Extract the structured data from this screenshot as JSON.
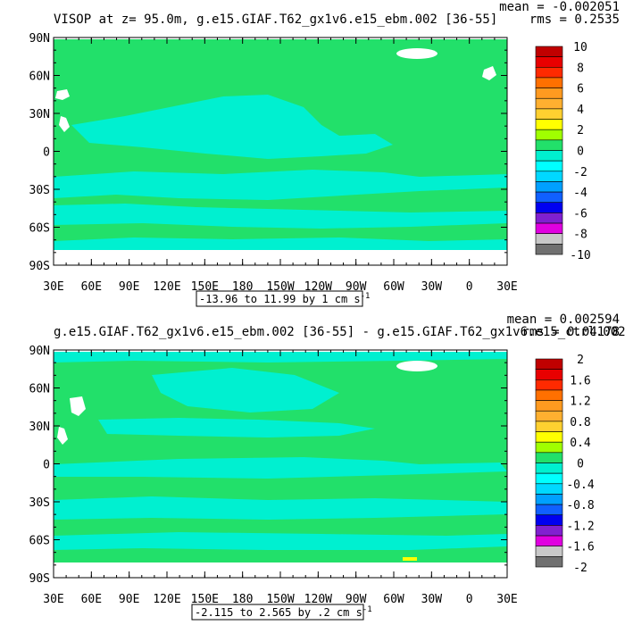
{
  "colors": {
    "ocean_green": "#22e06a",
    "ocean_cyan": "#00f0d0",
    "land_white": "#ffffff",
    "frame": "#000000"
  },
  "chart_data": [
    {
      "type": "heatmap",
      "title": "VISOP at z=  95.0m, g.e15.GIAF.T62_gx1v6.e15_ebm.002 [36-55]",
      "stats": [
        "mean = -0.002051",
        "rms = 0.2535"
      ],
      "range_label": "-13.96 to 11.99 by 1 cm s",
      "range_unit_sup": "-1",
      "x_ticks": [
        "30E",
        "60E",
        "90E",
        "120E",
        "150E",
        "180",
        "150W",
        "120W",
        "90W",
        "60W",
        "30W",
        "0",
        "30E"
      ],
      "y_ticks": [
        "90N",
        "60N",
        "30N",
        "0",
        "30S",
        "60S",
        "90S"
      ],
      "xlim": [
        30,
        390
      ],
      "ylim": [
        -90,
        90
      ],
      "colorbar": {
        "labels": [
          "10",
          "8",
          "6",
          "4",
          "2",
          "0",
          "-2",
          "-4",
          "-6",
          "-8",
          "-10"
        ],
        "colors": [
          "#c00000",
          "#e80000",
          "#ff2a00",
          "#ff7000",
          "#ff9a20",
          "#ffb030",
          "#ffd030",
          "#ffff00",
          "#a0ff00",
          "#22e06a",
          "#00f0d0",
          "#00ffff",
          "#00d8ff",
          "#00a0ff",
          "#1060ff",
          "#0000f0",
          "#8020d0",
          "#e000e0",
          "#c8c8c8",
          "#707070"
        ]
      }
    },
    {
      "type": "heatmap",
      "title": "g.e15.GIAF.T62_gx1v6.e15_ebm.002 [36-55] - g.e15.GIAF.T62_gx1v6.e15_ctrl.002",
      "stats": [
        "mean = 0.002594",
        "rms = 0.04178"
      ],
      "range_label": "-2.115 to 2.565 by .2 cm s",
      "range_unit_sup": "-1",
      "x_ticks": [
        "30E",
        "60E",
        "90E",
        "120E",
        "150E",
        "180",
        "150W",
        "120W",
        "90W",
        "60W",
        "30W",
        "0",
        "30E"
      ],
      "y_ticks": [
        "90N",
        "60N",
        "30N",
        "0",
        "30S",
        "60S",
        "90S"
      ],
      "xlim": [
        30,
        390
      ],
      "ylim": [
        -90,
        90
      ],
      "colorbar": {
        "labels": [
          "2",
          "1.6",
          "1.2",
          "0.8",
          "0.4",
          "0",
          "-0.4",
          "-0.8",
          "-1.2",
          "-1.6",
          "-2"
        ],
        "colors": [
          "#c00000",
          "#e80000",
          "#ff2a00",
          "#ff7000",
          "#ff9a20",
          "#ffb030",
          "#ffd030",
          "#ffff00",
          "#a0ff00",
          "#22e06a",
          "#00f0d0",
          "#00ffff",
          "#00d8ff",
          "#00a0ff",
          "#1060ff",
          "#0000f0",
          "#8020d0",
          "#e000e0",
          "#c8c8c8",
          "#707070"
        ]
      }
    }
  ]
}
